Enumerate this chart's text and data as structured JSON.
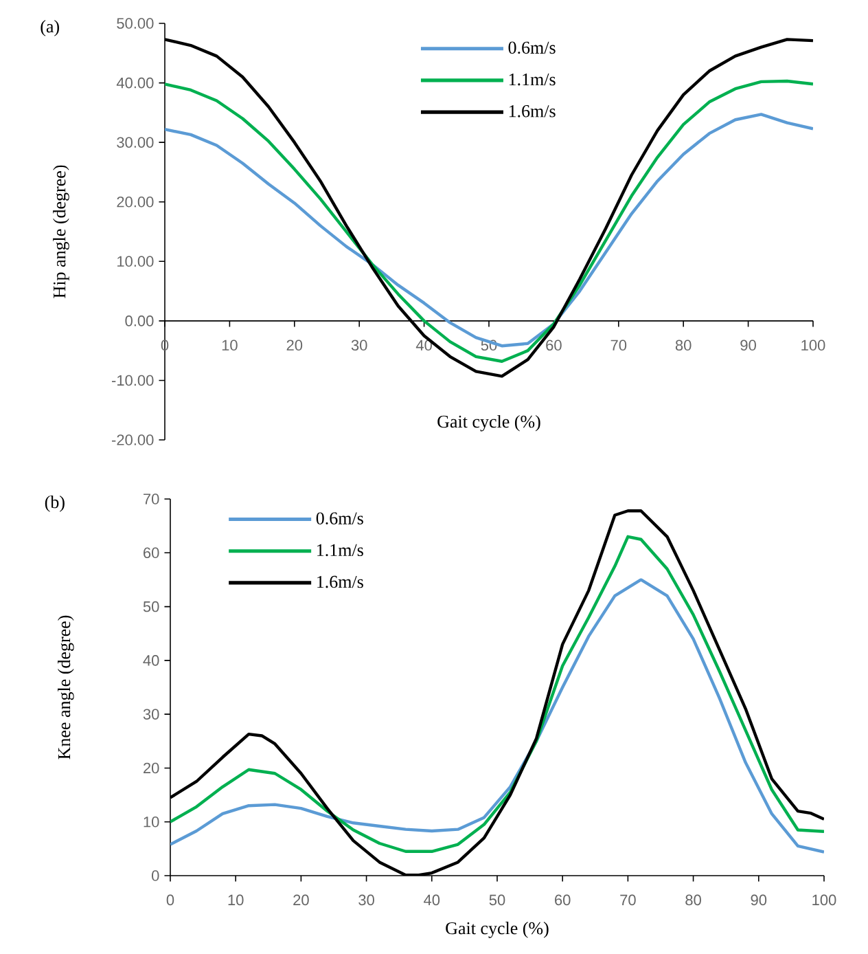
{
  "chart_data": [
    {
      "type": "line",
      "title": "(a)",
      "xlabel": "Gait cycle (%)",
      "ylabel": "Hip angle (degree)",
      "xlim": [
        0,
        100
      ],
      "xticks": [
        0,
        10,
        20,
        30,
        40,
        50,
        60,
        70,
        80,
        90,
        100
      ],
      "ylim": [
        -20,
        50
      ],
      "yticks": [
        {
          "value": -20,
          "label": "-20.00"
        },
        {
          "value": -10,
          "label": "-10.00"
        },
        {
          "value": 0,
          "label": "0.00"
        },
        {
          "value": 10,
          "label": "10.00"
        },
        {
          "value": 20,
          "label": "20.00"
        },
        {
          "value": 30,
          "label": "30.00"
        },
        {
          "value": 40,
          "label": "40.00"
        },
        {
          "value": 50,
          "label": "50.00"
        }
      ],
      "legend": "top",
      "x": [
        0,
        4,
        8,
        12,
        16,
        20,
        24,
        28,
        32,
        36,
        40,
        44,
        48,
        52,
        56,
        60,
        64,
        68,
        72,
        76,
        80,
        84,
        88,
        92,
        96,
        100
      ],
      "series": [
        {
          "name": "0.6m/s",
          "color": "#5b9bd5",
          "values": [
            32.2,
            31.3,
            29.5,
            26.5,
            23,
            19.8,
            16,
            12.5,
            9.5,
            6,
            3,
            -0.3,
            -2.8,
            -4.2,
            -3.8,
            -0.5,
            5,
            11.5,
            18,
            23.5,
            28,
            31.5,
            33.8,
            34.7,
            33.3,
            32.3
          ]
        },
        {
          "name": "1.1m/s",
          "color": "#00b050",
          "values": [
            39.8,
            38.8,
            37,
            34,
            30.2,
            25.5,
            20.5,
            15,
            9.5,
            4.5,
            0,
            -3.5,
            -6,
            -6.8,
            -5,
            -0.5,
            6,
            13.5,
            21,
            27.5,
            33,
            36.8,
            39,
            40.2,
            40.3,
            39.8
          ]
        },
        {
          "name": "1.6m/s",
          "color": "#000000",
          "values": [
            47.3,
            46.3,
            44.5,
            41,
            36,
            30,
            23.5,
            16,
            9,
            2.5,
            -2.5,
            -6,
            -8.5,
            -9.3,
            -6.5,
            -1,
            7,
            15.5,
            24.5,
            32,
            38,
            42,
            44.5,
            46,
            47.3,
            47.1
          ]
        }
      ]
    },
    {
      "type": "line",
      "title": "(b)",
      "xlabel": "Gait cycle (%)",
      "ylabel": "Knee angle (degree)",
      "xlim": [
        0,
        100
      ],
      "xticks": [
        0,
        10,
        20,
        30,
        40,
        50,
        60,
        70,
        80,
        90,
        100
      ],
      "ylim": [
        0,
        70
      ],
      "yticks": [
        0,
        10,
        20,
        30,
        40,
        50,
        60,
        70
      ],
      "legend": "top left",
      "series": [
        {
          "name": "0.6m/s",
          "color": "#5b9bd5",
          "x": [
            0,
            4,
            8,
            12,
            16,
            20,
            24,
            28,
            32,
            36,
            40,
            44,
            48,
            52,
            56,
            60,
            64,
            68,
            72,
            76,
            80,
            84,
            88,
            92,
            96,
            100
          ],
          "values": [
            5.8,
            8.3,
            11.5,
            13,
            13.2,
            12.5,
            11,
            9.8,
            9.2,
            8.6,
            8.3,
            8.6,
            10.8,
            16.5,
            25,
            35,
            44.5,
            52,
            55,
            52,
            44,
            33,
            21,
            11.5,
            5.5,
            4.4
          ]
        },
        {
          "name": "1.1m/s",
          "color": "#00b050",
          "x": [
            0,
            4,
            8,
            12,
            16,
            20,
            24,
            28,
            32,
            36,
            40,
            44,
            48,
            52,
            56,
            60,
            64,
            68,
            70,
            72,
            76,
            80,
            84,
            88,
            92,
            96,
            100
          ],
          "values": [
            10,
            12.8,
            16.5,
            19.7,
            19,
            16,
            12,
            8.5,
            6,
            4.5,
            4.5,
            5.8,
            9.5,
            15.5,
            25,
            39,
            48,
            57.5,
            63,
            62.5,
            57,
            48.5,
            38,
            27,
            16,
            8.5,
            8.2
          ]
        },
        {
          "name": "1.6m/s",
          "color": "#000000",
          "x": [
            0,
            4,
            8,
            12,
            14,
            16,
            20,
            24,
            28,
            32,
            36,
            38,
            40,
            44,
            48,
            52,
            56,
            60,
            64,
            68,
            70,
            72,
            76,
            80,
            84,
            88,
            92,
            96,
            98,
            100
          ],
          "values": [
            14.5,
            17.5,
            22,
            26.3,
            26,
            24.5,
            19,
            12.5,
            6.5,
            2.5,
            0.1,
            0.1,
            0.5,
            2.5,
            7,
            15,
            25.5,
            43,
            53,
            67,
            67.8,
            67.8,
            63,
            53,
            42,
            31,
            18,
            12,
            11.6,
            10.5
          ]
        }
      ]
    }
  ]
}
